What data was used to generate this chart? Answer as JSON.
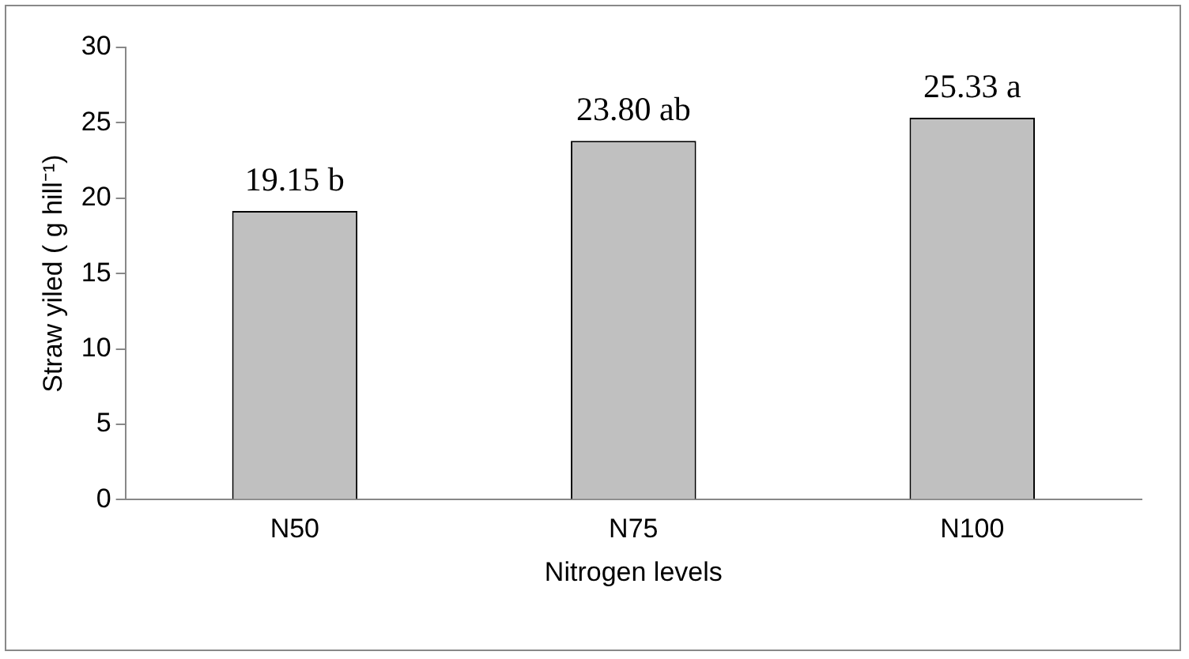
{
  "chart_data": {
    "type": "bar",
    "xlabel": "Nitrogen levels",
    "ylabel": "Straw yiled ( g hill⁻¹)",
    "categories": [
      "N50",
      "N75",
      "N100"
    ],
    "values": [
      19.15,
      23.8,
      25.33
    ],
    "value_labels": [
      "19.15 b",
      "23.80 ab",
      "25.33 a"
    ],
    "color": "#c0c0c0",
    "ylim": [
      0,
      30
    ],
    "yticks": [
      0,
      5,
      10,
      15,
      20,
      25,
      30
    ],
    "grid": false,
    "legend": false
  }
}
